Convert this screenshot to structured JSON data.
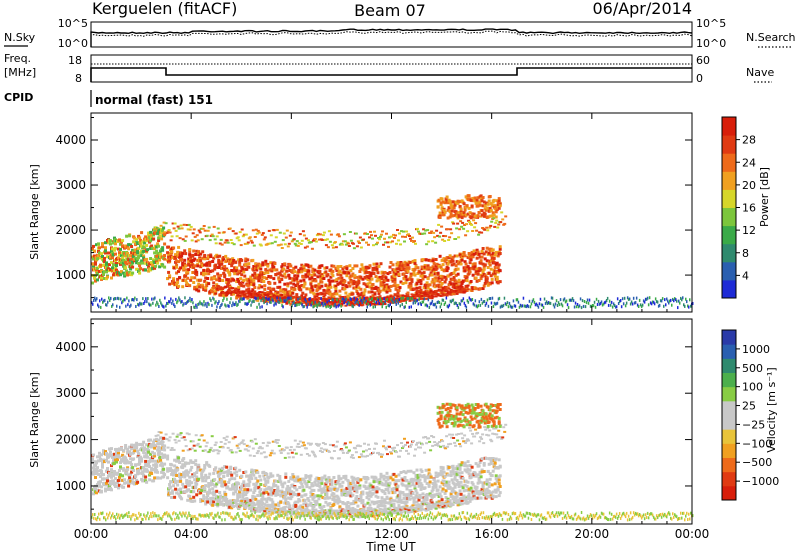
{
  "header": {
    "station": "Kerguelen (fitACF)",
    "beam": "Beam 07",
    "date": "06/Apr/2014"
  },
  "panels": {
    "nsky": {
      "left_label": "N.Sky",
      "right_label": "N.Search",
      "left_ticks": [
        "10^5",
        "10^0"
      ],
      "right_ticks": [
        "10^5",
        "10^0"
      ]
    },
    "freq": {
      "left_label_1": "Freq.",
      "left_label_2": "[MHz]",
      "right_label": "Nave",
      "left_ticks": [
        "18",
        "8"
      ],
      "right_ticks": [
        "60",
        "0"
      ]
    },
    "cpid": {
      "label": "CPID",
      "value": "normal (fast) 151"
    }
  },
  "chart_data": [
    {
      "type": "heatmap",
      "name": "power",
      "ylabel": "Slant Range [km]",
      "y_ticks": [
        "1000",
        "2000",
        "3000",
        "4000"
      ],
      "ylim": [
        180,
        4600
      ],
      "xlim": [
        0,
        24
      ],
      "colorbar": {
        "label": "Power [dB]",
        "ticks": [
          "4",
          "8",
          "12",
          "16",
          "20",
          "24",
          "28"
        ],
        "range": [
          0,
          32
        ],
        "colors": [
          "#1e2bd6",
          "#2a5fb0",
          "#2f8a6e",
          "#3aaa48",
          "#7cc63c",
          "#d6d62a",
          "#f0a020",
          "#ee6a1a",
          "#e03a12",
          "#d81e0a"
        ]
      }
    },
    {
      "type": "heatmap",
      "name": "velocity",
      "ylabel": "Slant Range [km]",
      "y_ticks": [
        "1000",
        "2000",
        "3000",
        "4000"
      ],
      "ylim": [
        180,
        4600
      ],
      "xlim": [
        0,
        24
      ],
      "colorbar": {
        "label": "Velocity [m s⁻¹]",
        "ticks": [
          "1000",
          "500",
          "100",
          "25",
          "−25",
          "−100",
          "−500",
          "−1000"
        ],
        "colors": [
          "#2a3aa8",
          "#2a5fb0",
          "#2f8a6e",
          "#4caf4c",
          "#88cc44",
          "#c8c8c8",
          "#c8c8c8",
          "#e8c43a",
          "#f0a020",
          "#ee6a1a",
          "#e03a12",
          "#d81e0a"
        ]
      }
    }
  ],
  "time_axis": {
    "label": "Time UT",
    "ticks": [
      "00:00",
      "04:00",
      "08:00",
      "12:00",
      "16:00",
      "20:00",
      "00:00"
    ],
    "range_hours": [
      0,
      24
    ]
  }
}
